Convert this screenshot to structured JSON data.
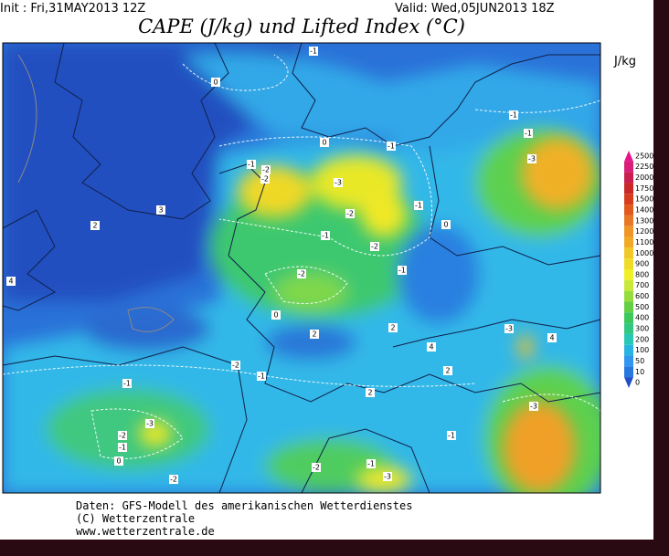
{
  "header": {
    "init": "Init : Fri,31MAY2013 12Z",
    "valid": "Valid: Wed,05JUN2013 18Z",
    "title": "CAPE (J/kg) und Lifted Index (°C)"
  },
  "legend": {
    "unit": "J/kg",
    "levels": [
      {
        "value": 2500,
        "color": "#e8148c"
      },
      {
        "value": 2250,
        "color": "#d81e78"
      },
      {
        "value": 2000,
        "color": "#c81e50"
      },
      {
        "value": 1750,
        "color": "#c82828"
      },
      {
        "value": 1500,
        "color": "#d83c1e"
      },
      {
        "value": 1400,
        "color": "#e05a1e"
      },
      {
        "value": 1300,
        "color": "#e87828"
      },
      {
        "value": 1200,
        "color": "#f09628"
      },
      {
        "value": 1100,
        "color": "#f0aa28"
      },
      {
        "value": 1000,
        "color": "#f0c828"
      },
      {
        "value": 900,
        "color": "#f0dc28"
      },
      {
        "value": 800,
        "color": "#f0f028"
      },
      {
        "value": 700,
        "color": "#c8e83c"
      },
      {
        "value": 600,
        "color": "#96dc3c"
      },
      {
        "value": 500,
        "color": "#64d046"
      },
      {
        "value": 400,
        "color": "#3cc85a"
      },
      {
        "value": 300,
        "color": "#32c882"
      },
      {
        "value": 200,
        "color": "#28c8b4"
      },
      {
        "value": 100,
        "color": "#28b4e0"
      },
      {
        "value": 50,
        "color": "#3296f0"
      },
      {
        "value": 10,
        "color": "#2878e0"
      },
      {
        "value": 0,
        "color": "#2050c8"
      }
    ]
  },
  "contour_labels": [
    -1,
    0,
    -1,
    -1,
    -1,
    -2,
    -1,
    0,
    -2,
    -3,
    -3,
    -2,
    -1,
    0,
    -1,
    -2,
    -2,
    -1,
    2,
    2,
    0,
    -1,
    -2,
    2,
    4,
    2,
    -1,
    -3,
    -2,
    -1,
    -3,
    -2,
    -1,
    -2,
    -3,
    -1,
    -3,
    4,
    0,
    2,
    3,
    4
  ],
  "footer": {
    "source": "Daten: GFS-Modell des amerikanischen Wetterdienstes",
    "copyright": "(C) Wetterzentrale",
    "url": "www.wetterzentrale.de"
  }
}
